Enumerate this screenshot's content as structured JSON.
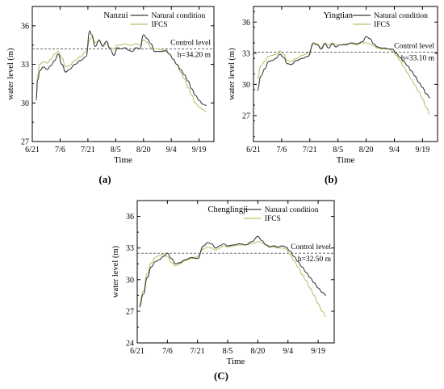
{
  "captions": [
    "(a)",
    "(b)",
    "(C)"
  ],
  "chart_data": [
    {
      "type": "line",
      "title": "Nanzui",
      "xlabel": "Time",
      "ylabel": "water level (m)",
      "x_ticks": [
        "6/21",
        "7/6",
        "7/21",
        "8/5",
        "8/20",
        "9/4",
        "9/19"
      ],
      "y_ticks": [
        27,
        30,
        33,
        36
      ],
      "ylim": [
        27,
        37.5
      ],
      "xlim": [
        "6/21",
        "9/27"
      ],
      "legend_position": "top-right",
      "control_level": {
        "label": "Control level",
        "value_text": "h=34.20 m",
        "value": 34.2
      },
      "series": [
        {
          "name": "Natural condition",
          "color": "#3a3a3a",
          "x": [
            "6/23",
            "6/24",
            "6/25",
            "6/27",
            "6/29",
            "7/1",
            "7/3",
            "7/5",
            "7/7",
            "7/9",
            "7/11",
            "7/14",
            "7/17",
            "7/20",
            "7/22",
            "7/23",
            "7/25",
            "7/27",
            "7/29",
            "7/31",
            "8/2",
            "8/4",
            "8/6",
            "8/8",
            "8/10",
            "8/12",
            "8/14",
            "8/16",
            "8/18",
            "8/20",
            "8/22",
            "8/24",
            "8/26",
            "8/28",
            "8/30",
            "9/1",
            "9/3",
            "9/5",
            "9/7",
            "9/9",
            "9/11",
            "9/13",
            "9/15",
            "9/17",
            "9/19",
            "9/21",
            "9/23"
          ],
          "values": [
            30.2,
            31.8,
            32.5,
            32.8,
            32.6,
            32.9,
            33.3,
            33.8,
            33.0,
            32.4,
            32.6,
            33.0,
            33.3,
            33.6,
            35.6,
            35.3,
            34.4,
            34.9,
            34.4,
            34.8,
            34.2,
            33.7,
            34.3,
            34.2,
            34.3,
            34.1,
            34.0,
            34.3,
            34.2,
            35.3,
            35.0,
            34.6,
            34.0,
            34.0,
            34.0,
            34.1,
            33.8,
            33.4,
            33.0,
            32.6,
            32.2,
            31.7,
            31.1,
            30.6,
            30.2,
            29.9,
            29.8
          ]
        },
        {
          "name": "IFCS",
          "color": "#b8c46a",
          "x": [
            "6/23",
            "6/24",
            "6/25",
            "6/27",
            "6/29",
            "7/1",
            "7/3",
            "7/5",
            "7/7",
            "7/9",
            "7/11",
            "7/14",
            "7/17",
            "7/20",
            "7/22",
            "7/23",
            "7/25",
            "7/27",
            "7/29",
            "7/31",
            "8/2",
            "8/4",
            "8/6",
            "8/8",
            "8/10",
            "8/12",
            "8/14",
            "8/16",
            "8/18",
            "8/20",
            "8/22",
            "8/24",
            "8/26",
            "8/28",
            "8/30",
            "9/1",
            "9/3",
            "9/5",
            "9/7",
            "9/9",
            "9/11",
            "9/13",
            "9/15",
            "9/17",
            "9/19",
            "9/21",
            "9/23"
          ],
          "values": [
            30.4,
            32.2,
            33.0,
            33.2,
            33.1,
            33.4,
            33.8,
            34.0,
            33.5,
            32.8,
            32.9,
            33.3,
            33.6,
            34.0,
            34.9,
            35.1,
            34.7,
            34.8,
            34.5,
            34.6,
            34.3,
            34.2,
            34.5,
            34.5,
            34.6,
            34.5,
            34.5,
            34.6,
            34.5,
            34.9,
            34.7,
            34.3,
            34.2,
            34.2,
            34.1,
            34.0,
            33.8,
            33.4,
            33.0,
            32.4,
            31.9,
            31.2,
            30.6,
            30.0,
            29.7,
            29.5,
            29.3
          ]
        }
      ]
    },
    {
      "type": "line",
      "title": "Yingtian",
      "xlabel": "Time",
      "ylabel": "water level (m)",
      "x_ticks": [
        "6/21",
        "7/6",
        "7/21",
        "8/5",
        "8/20",
        "9/4",
        "9/19"
      ],
      "y_ticks": [
        27,
        30,
        33,
        36
      ],
      "ylim": [
        24.5,
        37.5
      ],
      "xlim": [
        "6/21",
        "9/27"
      ],
      "legend_position": "top-right",
      "control_level": {
        "label": "Control level",
        "value_text": "h=33.10 m",
        "value": 33.1
      },
      "series": [
        {
          "name": "Natural condition",
          "color": "#3a3a3a",
          "x": [
            "6/23",
            "6/25",
            "6/27",
            "6/29",
            "7/1",
            "7/3",
            "7/5",
            "7/7",
            "7/9",
            "7/11",
            "7/14",
            "7/17",
            "7/20",
            "7/23",
            "7/25",
            "7/27",
            "7/29",
            "7/31",
            "8/2",
            "8/4",
            "8/6",
            "8/9",
            "8/12",
            "8/15",
            "8/18",
            "8/20",
            "8/22",
            "8/24",
            "8/26",
            "8/28",
            "8/30",
            "9/1",
            "9/3",
            "9/5",
            "9/7",
            "9/9",
            "9/11",
            "9/13",
            "9/15",
            "9/17",
            "9/19",
            "9/21",
            "9/23"
          ],
          "values": [
            29.4,
            30.8,
            31.5,
            32.2,
            32.3,
            32.5,
            32.9,
            32.6,
            32.0,
            31.9,
            32.3,
            32.5,
            32.7,
            34.0,
            33.8,
            33.4,
            33.9,
            33.5,
            33.9,
            33.6,
            33.8,
            33.8,
            34.0,
            33.9,
            34.1,
            34.6,
            34.4,
            33.9,
            33.6,
            33.5,
            33.5,
            33.4,
            33.4,
            33.0,
            32.6,
            32.2,
            31.8,
            31.3,
            30.8,
            30.2,
            29.7,
            29.1,
            28.7
          ]
        },
        {
          "name": "IFCS",
          "color": "#b8c46a",
          "x": [
            "6/23",
            "6/25",
            "6/27",
            "6/29",
            "7/1",
            "7/3",
            "7/5",
            "7/7",
            "7/9",
            "7/11",
            "7/14",
            "7/17",
            "7/20",
            "7/23",
            "7/25",
            "7/27",
            "7/29",
            "7/31",
            "8/2",
            "8/4",
            "8/6",
            "8/9",
            "8/12",
            "8/15",
            "8/18",
            "8/20",
            "8/22",
            "8/24",
            "8/26",
            "8/28",
            "8/30",
            "9/1",
            "9/3",
            "9/5",
            "9/7",
            "9/9",
            "9/11",
            "9/13",
            "9/15",
            "9/17",
            "9/19",
            "9/21",
            "9/23"
          ],
          "values": [
            30.5,
            31.8,
            32.2,
            32.7,
            32.8,
            32.9,
            33.2,
            32.9,
            32.3,
            32.2,
            32.5,
            32.8,
            33.0,
            33.8,
            33.9,
            33.5,
            34.0,
            33.8,
            34.0,
            33.8,
            33.8,
            33.9,
            33.9,
            33.8,
            34.0,
            34.0,
            33.9,
            33.7,
            33.5,
            33.4,
            33.4,
            33.4,
            33.2,
            32.8,
            32.3,
            31.7,
            31.1,
            30.5,
            29.9,
            29.3,
            28.6,
            27.8,
            27.1
          ]
        }
      ]
    },
    {
      "type": "line",
      "title": "Chenglingji",
      "xlabel": "Time",
      "ylabel": "water level (m)",
      "x_ticks": [
        "6/21",
        "7/6",
        "7/21",
        "8/5",
        "8/20",
        "9/4",
        "9/19"
      ],
      "y_ticks": [
        24,
        27,
        30,
        33,
        36
      ],
      "ylim": [
        24,
        37.5
      ],
      "xlim": [
        "6/21",
        "9/27"
      ],
      "legend_position": "top-right",
      "control_level": {
        "label": "Control level",
        "value_text": "h=32.50 m",
        "value": 32.5
      },
      "series": [
        {
          "name": "Natural condition",
          "color": "#3a3a3a",
          "x": [
            "6/22",
            "6/24",
            "6/26",
            "6/28",
            "6/30",
            "7/2",
            "7/4",
            "7/6",
            "7/8",
            "7/10",
            "7/12",
            "7/15",
            "7/18",
            "7/21",
            "7/24",
            "7/26",
            "7/28",
            "7/30",
            "8/1",
            "8/3",
            "8/5",
            "8/8",
            "8/11",
            "8/14",
            "8/17",
            "8/20",
            "8/22",
            "8/24",
            "8/26",
            "8/28",
            "8/30",
            "9/1",
            "9/3",
            "9/5",
            "9/7",
            "9/9",
            "9/11",
            "9/13",
            "9/15",
            "9/17",
            "9/19",
            "9/21",
            "9/23"
          ],
          "values": [
            27.4,
            28.6,
            30.2,
            31.2,
            31.7,
            31.9,
            32.2,
            32.5,
            32.0,
            31.5,
            31.6,
            31.9,
            32.1,
            32.0,
            33.2,
            33.5,
            33.4,
            33.0,
            33.2,
            33.4,
            33.2,
            33.3,
            33.4,
            33.3,
            33.6,
            34.1,
            33.7,
            33.3,
            33.1,
            33.2,
            33.1,
            33.2,
            33.1,
            32.7,
            32.2,
            31.7,
            31.2,
            30.7,
            30.2,
            29.7,
            29.2,
            28.8,
            28.5
          ]
        },
        {
          "name": "IFCS",
          "color": "#b8c46a",
          "x": [
            "6/22",
            "6/24",
            "6/26",
            "6/28",
            "6/30",
            "7/2",
            "7/4",
            "7/6",
            "7/8",
            "7/10",
            "7/12",
            "7/15",
            "7/18",
            "7/21",
            "7/24",
            "7/26",
            "7/28",
            "7/30",
            "8/1",
            "8/3",
            "8/5",
            "8/8",
            "8/11",
            "8/14",
            "8/17",
            "8/20",
            "8/22",
            "8/24",
            "8/26",
            "8/28",
            "8/30",
            "9/1",
            "9/3",
            "9/5",
            "9/7",
            "9/9",
            "9/11",
            "9/13",
            "9/15",
            "9/17",
            "9/19",
            "9/21",
            "9/23"
          ],
          "values": [
            27.6,
            28.9,
            30.6,
            31.6,
            32.1,
            32.3,
            32.4,
            32.2,
            31.6,
            31.3,
            31.5,
            31.8,
            32.0,
            32.2,
            32.9,
            33.1,
            33.0,
            32.8,
            33.0,
            33.2,
            33.1,
            33.2,
            33.3,
            33.3,
            33.4,
            33.6,
            33.5,
            33.3,
            33.2,
            33.1,
            33.0,
            33.0,
            32.9,
            32.4,
            31.8,
            31.2,
            30.5,
            29.9,
            29.2,
            28.5,
            27.7,
            27.0,
            26.5
          ]
        }
      ]
    }
  ]
}
